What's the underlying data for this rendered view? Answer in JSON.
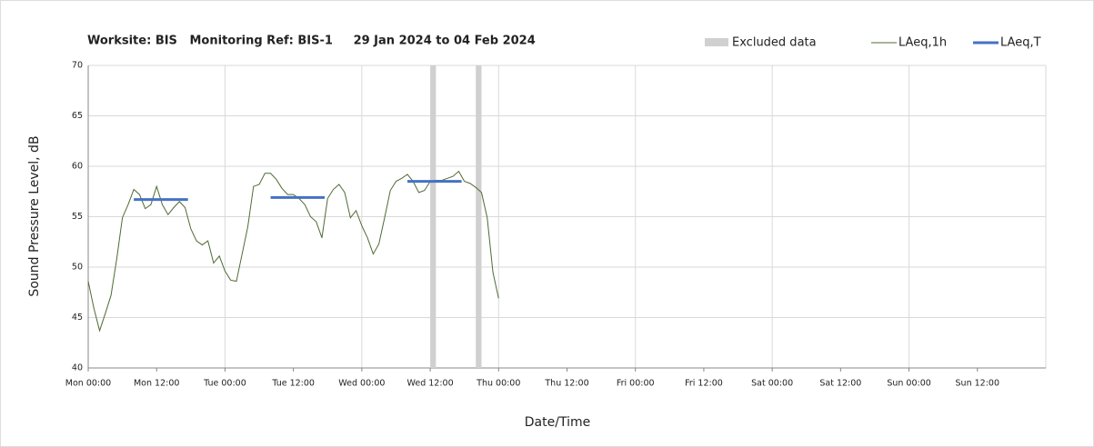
{
  "chart_data": {
    "type": "line",
    "title": "Worksite: BIS   Monitoring Ref: BIS-1     29 Jan 2024 to 04 Feb 2024",
    "xlabel": "Date/Time",
    "ylabel": "Sound Pressure Level, dB",
    "xlim": [
      0,
      168
    ],
    "ylim": [
      40,
      70
    ],
    "yticks": [
      40,
      45,
      50,
      55,
      60,
      65,
      70
    ],
    "xticks": [
      {
        "value": 0,
        "label": "Mon 00:00"
      },
      {
        "value": 12,
        "label": "Mon 12:00"
      },
      {
        "value": 24,
        "label": "Tue 00:00"
      },
      {
        "value": 36,
        "label": "Tue 12:00"
      },
      {
        "value": 48,
        "label": "Wed 00:00"
      },
      {
        "value": 60,
        "label": "Wed 12:00"
      },
      {
        "value": 72,
        "label": "Thu 00:00"
      },
      {
        "value": 84,
        "label": "Thu 12:00"
      },
      {
        "value": 96,
        "label": "Fri 00:00"
      },
      {
        "value": 108,
        "label": "Fri 12:00"
      },
      {
        "value": 120,
        "label": "Sat 00:00"
      },
      {
        "value": 132,
        "label": "Sat 12:00"
      },
      {
        "value": 144,
        "label": "Sun 00:00"
      },
      {
        "value": 156,
        "label": "Sun 12:00"
      }
    ],
    "grid": true,
    "legend": "top-right",
    "excluded": {
      "name": "Excluded data",
      "color": "#d0d0d0",
      "ranges": [
        [
          60,
          61
        ],
        [
          68,
          69
        ]
      ]
    },
    "series": [
      {
        "name": "LAeq,1h",
        "color": "#4f6b34",
        "x": [
          0,
          1,
          2,
          3,
          4,
          5,
          6,
          7,
          8,
          9,
          10,
          11,
          12,
          13,
          14,
          15,
          16,
          17,
          18,
          19,
          20,
          21,
          22,
          23,
          24,
          25,
          26,
          27,
          28,
          29,
          30,
          31,
          32,
          33,
          34,
          35,
          36,
          37,
          38,
          39,
          40,
          41,
          42,
          43,
          44,
          45,
          46,
          47,
          48,
          49,
          50,
          51,
          52,
          53,
          54,
          55,
          56,
          57,
          58,
          59,
          60,
          61,
          62,
          63,
          64,
          65,
          66,
          67,
          68,
          69,
          70,
          71,
          72
        ],
        "values": [
          48.6,
          45.9,
          43.7,
          45.4,
          47.2,
          50.8,
          54.9,
          56.2,
          57.7,
          57.2,
          55.8,
          56.2,
          58.0,
          56.2,
          55.2,
          55.9,
          56.5,
          55.9,
          53.8,
          52.6,
          52.2,
          52.6,
          50.4,
          51.1,
          49.6,
          48.7,
          48.6,
          51.3,
          54.0,
          58.0,
          58.2,
          59.3,
          59.3,
          58.7,
          57.8,
          57.2,
          57.2,
          56.8,
          56.2,
          55.0,
          54.5,
          52.9,
          56.8,
          57.7,
          58.2,
          57.4,
          54.9,
          55.6,
          54.1,
          52.9,
          51.3,
          52.3,
          54.9,
          57.6,
          58.5,
          58.8,
          59.2,
          58.5,
          57.4,
          57.6,
          58.5,
          58.6,
          58.6,
          58.8,
          59.0,
          59.5,
          58.5,
          58.3,
          57.9,
          57.4,
          54.9,
          49.5,
          46.9
        ]
      },
      {
        "name": "LAeq,T",
        "color": "#4472c4",
        "segments": [
          {
            "start": 8,
            "end": 17.5,
            "value": 56.7
          },
          {
            "start": 32,
            "end": 41.5,
            "value": 56.9
          },
          {
            "start": 56,
            "end": 65.5,
            "value": 58.5
          }
        ]
      }
    ]
  }
}
